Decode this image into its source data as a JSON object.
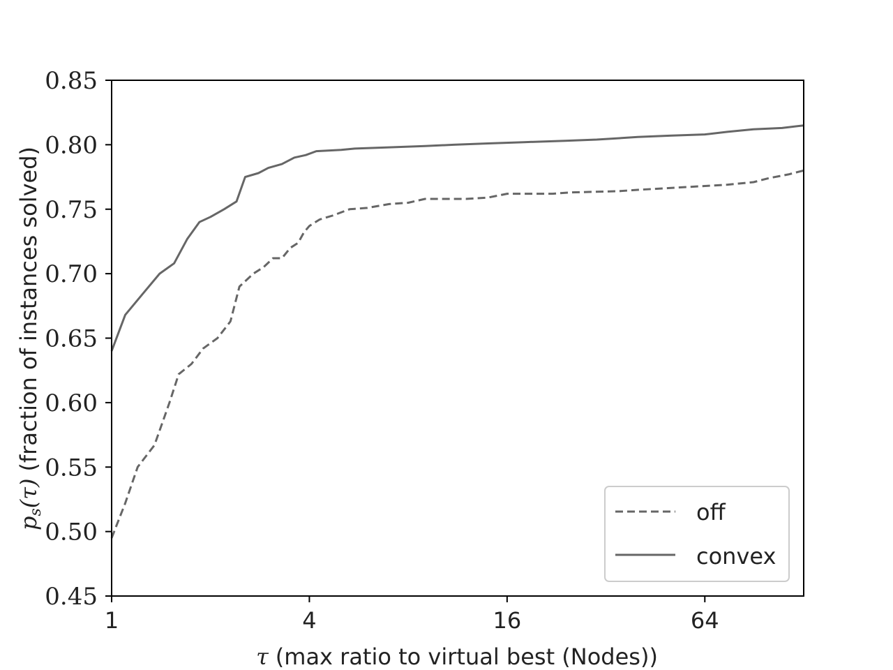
{
  "chart_data": {
    "type": "line",
    "xscale": "log2",
    "xlim": [
      1,
      128
    ],
    "ylim": [
      0.45,
      0.85
    ],
    "x_ticks": [
      1,
      4,
      16,
      64
    ],
    "x_tick_labels": [
      "1",
      "4",
      "16",
      "64"
    ],
    "y_ticks": [
      0.45,
      0.5,
      0.55,
      0.6,
      0.65,
      0.7,
      0.75,
      0.8,
      0.85
    ],
    "y_tick_labels": [
      "0.45",
      "0.50",
      "0.55",
      "0.60",
      "0.65",
      "0.70",
      "0.75",
      "0.80",
      "0.85"
    ],
    "xlabel_symbol": "τ",
    "xlabel_text": "(max ratio to virtual best (Nodes))",
    "ylabel_symbol": "p",
    "ylabel_subscript": "s",
    "ylabel_arg": "(τ)",
    "ylabel_text": "(fraction of instances solved)",
    "grid": false,
    "legend_position": "lower-right",
    "series": [
      {
        "name": "off",
        "style": "dashed",
        "color": "#666666",
        "points": [
          [
            1.0,
            0.495
          ],
          [
            1.1,
            0.522
          ],
          [
            1.2,
            0.55
          ],
          [
            1.35,
            0.567
          ],
          [
            1.5,
            0.6
          ],
          [
            1.6,
            0.622
          ],
          [
            1.75,
            0.63
          ],
          [
            1.9,
            0.642
          ],
          [
            2.1,
            0.65
          ],
          [
            2.3,
            0.663
          ],
          [
            2.45,
            0.69
          ],
          [
            2.7,
            0.7
          ],
          [
            2.9,
            0.705
          ],
          [
            3.1,
            0.712
          ],
          [
            3.3,
            0.712
          ],
          [
            3.5,
            0.72
          ],
          [
            3.7,
            0.724
          ],
          [
            3.85,
            0.732
          ],
          [
            4.0,
            0.737
          ],
          [
            4.3,
            0.742
          ],
          [
            4.7,
            0.745
          ],
          [
            5.3,
            0.75
          ],
          [
            6.0,
            0.751
          ],
          [
            7.0,
            0.754
          ],
          [
            8.0,
            0.755
          ],
          [
            9.0,
            0.758
          ],
          [
            12.0,
            0.758
          ],
          [
            14.0,
            0.759
          ],
          [
            16.0,
            0.762
          ],
          [
            22.0,
            0.762
          ],
          [
            25.0,
            0.763
          ],
          [
            35.0,
            0.764
          ],
          [
            40.0,
            0.765
          ],
          [
            55.0,
            0.767
          ],
          [
            64.0,
            0.768
          ],
          [
            75.0,
            0.769
          ],
          [
            90.0,
            0.771
          ],
          [
            100.0,
            0.774
          ],
          [
            115.0,
            0.777
          ],
          [
            128.0,
            0.78
          ]
        ]
      },
      {
        "name": "convex",
        "style": "solid",
        "color": "#666666",
        "points": [
          [
            1.0,
            0.64
          ],
          [
            1.1,
            0.668
          ],
          [
            1.25,
            0.685
          ],
          [
            1.4,
            0.7
          ],
          [
            1.55,
            0.708
          ],
          [
            1.7,
            0.727
          ],
          [
            1.85,
            0.74
          ],
          [
            2.0,
            0.744
          ],
          [
            2.2,
            0.75
          ],
          [
            2.4,
            0.756
          ],
          [
            2.55,
            0.775
          ],
          [
            2.8,
            0.778
          ],
          [
            3.0,
            0.782
          ],
          [
            3.3,
            0.785
          ],
          [
            3.6,
            0.79
          ],
          [
            3.9,
            0.792
          ],
          [
            4.2,
            0.795
          ],
          [
            5.0,
            0.796
          ],
          [
            5.5,
            0.797
          ],
          [
            7.0,
            0.798
          ],
          [
            9.0,
            0.799
          ],
          [
            11.0,
            0.8
          ],
          [
            14.0,
            0.801
          ],
          [
            18.0,
            0.802
          ],
          [
            24.0,
            0.803
          ],
          [
            30.0,
            0.804
          ],
          [
            40.0,
            0.806
          ],
          [
            50.0,
            0.807
          ],
          [
            64.0,
            0.808
          ],
          [
            75.0,
            0.81
          ],
          [
            90.0,
            0.812
          ],
          [
            110.0,
            0.813
          ],
          [
            128.0,
            0.815
          ]
        ]
      }
    ]
  }
}
